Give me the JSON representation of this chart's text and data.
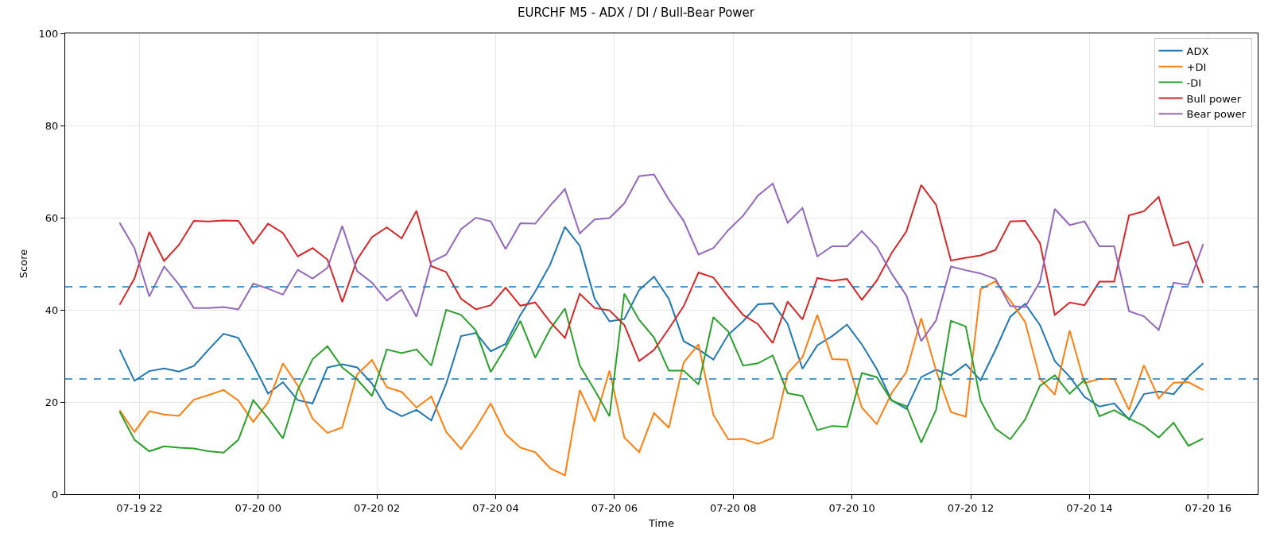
{
  "chart_data": {
    "type": "line",
    "title": "EURCHF M5 - ADX / DI / Bull-Bear Power",
    "xlabel": "Time",
    "ylabel": "Score",
    "x": [
      "--07-19T21:40",
      "--07-19T21:55",
      "--07-19T22:10",
      "--07-19T22:25",
      "--07-19T22:40",
      "--07-19T22:55",
      "--07-19T23:10",
      "--07-19T23:25",
      "--07-19T23:40",
      "--07-19T23:55",
      "--07-20T00:10",
      "--07-20T00:25",
      "--07-20T00:40",
      "--07-20T00:55",
      "--07-20T01:10",
      "--07-20T01:25",
      "--07-20T01:40",
      "--07-20T01:55",
      "--07-20T02:10",
      "--07-20T02:25",
      "--07-20T02:40",
      "--07-20T02:55",
      "--07-20T03:10",
      "--07-20T03:25",
      "--07-20T03:40",
      "--07-20T03:55",
      "--07-20T04:10",
      "--07-20T04:25",
      "--07-20T04:40",
      "--07-20T04:55",
      "--07-20T05:10",
      "--07-20T05:25",
      "--07-20T05:40",
      "--07-20T05:55",
      "--07-20T06:10",
      "--07-20T06:25",
      "--07-20T06:40",
      "--07-20T06:55",
      "--07-20T07:10",
      "--07-20T07:25",
      "--07-20T07:40",
      "--07-20T07:55",
      "--07-20T08:10",
      "--07-20T08:25",
      "--07-20T08:40",
      "--07-20T08:55",
      "--07-20T09:10",
      "--07-20T09:25",
      "--07-20T09:40",
      "--07-20T09:55",
      "--07-20T10:10",
      "--07-20T10:25",
      "--07-20T10:40",
      "--07-20T10:55",
      "--07-20T11:10",
      "--07-20T11:25",
      "--07-20T11:40",
      "--07-20T11:55",
      "--07-20T12:10",
      "--07-20T12:25",
      "--07-20T12:40",
      "--07-20T12:55",
      "--07-20T13:10",
      "--07-20T13:25",
      "--07-20T13:40",
      "--07-20T13:55",
      "--07-20T14:10",
      "--07-20T14:25",
      "--07-20T14:40",
      "--07-20T14:55",
      "--07-20T15:10",
      "--07-20T15:25",
      "--07-20T15:40",
      "--07-20T15:55"
    ],
    "series": [
      {
        "name": "ADX",
        "color": "#1f77b4",
        "values": [
          31.4,
          24.6,
          26.7,
          27.3,
          26.6,
          27.8,
          31.4,
          34.8,
          33.9,
          28.2,
          21.8,
          24.3,
          20.4,
          19.7,
          27.5,
          28.2,
          27.5,
          24.0,
          18.6,
          16.9,
          18.3,
          16.0,
          24.0,
          34.3,
          35.0,
          31.0,
          32.6,
          38.9,
          44.0,
          49.8,
          58.0,
          53.9,
          42.4,
          37.5,
          38.0,
          44.3,
          47.2,
          42.4,
          33.2,
          31.4,
          29.2,
          34.6,
          37.5,
          41.2,
          41.4,
          37.0,
          27.2,
          32.3,
          34.3,
          36.8,
          32.5,
          27.2,
          20.4,
          18.5,
          25.4,
          27.0,
          25.8,
          28.2,
          24.7,
          31.3,
          38.5,
          41.3,
          36.7,
          28.9,
          25.5,
          21.1,
          19.0,
          19.7,
          16.2,
          21.7,
          22.3,
          21.7,
          25.5,
          28.4
        ]
      },
      {
        "name": "+DI",
        "color": "#ff7f0e",
        "values": [
          18.2,
          13.5,
          18.0,
          17.3,
          17.0,
          20.5,
          21.5,
          22.6,
          20.3,
          15.7,
          19.9,
          28.4,
          23.6,
          16.4,
          13.3,
          14.5,
          26.0,
          29.1,
          23.2,
          22.2,
          18.8,
          21.2,
          13.5,
          9.8,
          14.4,
          19.7,
          13.0,
          10.1,
          9.1,
          5.6,
          4.1,
          22.6,
          15.8,
          26.8,
          12.3,
          9.1,
          17.6,
          14.4,
          28.6,
          32.5,
          17.2,
          11.9,
          12.0,
          10.9,
          12.2,
          26.2,
          29.7,
          38.9,
          29.3,
          29.2,
          18.8,
          15.2,
          21.9,
          26.5,
          38.2,
          26.8,
          17.8,
          16.8,
          44.5,
          46.2,
          42.0,
          37.4,
          25.1,
          21.6,
          35.5,
          24.1,
          25.0,
          25.0,
          18.3,
          28.0,
          20.8,
          24.2,
          24.3,
          22.6
        ]
      },
      {
        "name": "-DI",
        "color": "#2ca02c",
        "values": [
          17.9,
          11.8,
          9.3,
          10.4,
          10.1,
          9.9,
          9.3,
          9.0,
          11.8,
          20.4,
          16.5,
          12.1,
          22.6,
          29.3,
          32.1,
          27.5,
          24.9,
          21.3,
          31.4,
          30.6,
          31.4,
          27.9,
          40.0,
          38.9,
          35.5,
          26.5,
          31.8,
          37.6,
          29.6,
          35.8,
          40.3,
          27.9,
          22.6,
          16.9,
          43.5,
          37.8,
          34.0,
          26.8,
          26.8,
          23.8,
          38.4,
          35.3,
          27.9,
          28.4,
          30.1,
          21.9,
          21.3,
          13.9,
          14.8,
          14.6,
          26.3,
          25.4,
          20.3,
          19.1,
          11.2,
          18.3,
          37.6,
          36.4,
          20.3,
          14.2,
          11.9,
          16.2,
          23.5,
          25.8,
          21.8,
          24.8,
          16.9,
          18.2,
          16.4,
          14.8,
          12.3,
          15.5,
          10.5,
          12.1
        ]
      },
      {
        "name": "Bull power",
        "color": "#d62728",
        "values": [
          41.1,
          46.8,
          56.9,
          50.6,
          54.1,
          59.3,
          59.2,
          59.4,
          59.3,
          54.4,
          58.7,
          56.7,
          51.6,
          53.4,
          50.9,
          41.7,
          50.9,
          55.8,
          57.9,
          55.5,
          61.5,
          49.5,
          48.2,
          42.4,
          40.1,
          41.0,
          44.8,
          40.9,
          41.6,
          37.4,
          33.9,
          43.5,
          40.4,
          39.9,
          36.7,
          28.9,
          31.3,
          35.9,
          40.8,
          48.1,
          47.0,
          42.8,
          38.9,
          36.9,
          32.8,
          41.8,
          37.9,
          46.9,
          46.3,
          46.7,
          42.2,
          46.3,
          52.3,
          57.0,
          67.1,
          62.8,
          50.7,
          51.3,
          51.8,
          53.0,
          59.2,
          59.3,
          54.5,
          38.9,
          41.6,
          41.0,
          46.1,
          46.1,
          60.5,
          61.4,
          64.5,
          53.9,
          54.8,
          45.8
        ]
      },
      {
        "name": "Bear power",
        "color": "#9467bd",
        "values": [
          58.9,
          53.4,
          42.9,
          49.4,
          45.5,
          40.4,
          40.4,
          40.6,
          40.1,
          45.7,
          44.6,
          43.3,
          48.7,
          46.8,
          49.1,
          58.2,
          48.4,
          45.9,
          42.0,
          44.4,
          38.5,
          50.4,
          52.0,
          57.5,
          60.0,
          59.2,
          53.2,
          58.8,
          58.7,
          62.6,
          66.2,
          56.6,
          59.6,
          59.9,
          63.1,
          69.0,
          69.4,
          63.9,
          59.3,
          52.0,
          53.4,
          57.3,
          60.4,
          64.8,
          67.4,
          58.9,
          62.1,
          51.6,
          53.8,
          53.8,
          57.1,
          53.7,
          47.9,
          43.1,
          33.2,
          37.7,
          49.4,
          48.6,
          47.9,
          46.7,
          40.8,
          40.6,
          46.1,
          61.9,
          58.4,
          59.2,
          53.8,
          53.8,
          39.7,
          38.6,
          35.6,
          45.9,
          45.4,
          54.3
        ]
      }
    ],
    "ref_lines": [
      {
        "axis": "y",
        "value": 45,
        "color": "#1f77b4",
        "line_style": "dashed"
      },
      {
        "axis": "y",
        "value": 25,
        "color": "#1f77b4",
        "line_style": "dashed"
      }
    ],
    "xlim": [
      "--07-19T20:45",
      "--07-20T16:50"
    ],
    "xticks": [
      {
        "value": "--07-19T22:00",
        "label": "07-19 22"
      },
      {
        "value": "--07-20T00:00",
        "label": "07-20 00"
      },
      {
        "value": "--07-20T02:00",
        "label": "07-20 02"
      },
      {
        "value": "--07-20T04:00",
        "label": "07-20 04"
      },
      {
        "value": "--07-20T06:00",
        "label": "07-20 06"
      },
      {
        "value": "--07-20T08:00",
        "label": "07-20 08"
      },
      {
        "value": "--07-20T10:00",
        "label": "07-20 10"
      },
      {
        "value": "--07-20T12:00",
        "label": "07-20 12"
      },
      {
        "value": "--07-20T14:00",
        "label": "07-20 14"
      },
      {
        "value": "--07-20T16:00",
        "label": "07-20 16"
      }
    ],
    "ylim": [
      0,
      100
    ],
    "yticks": [
      0,
      20,
      40,
      60,
      80,
      100
    ],
    "grid": true,
    "legend": "top right",
    "line_style": "solid",
    "marker": "none"
  }
}
